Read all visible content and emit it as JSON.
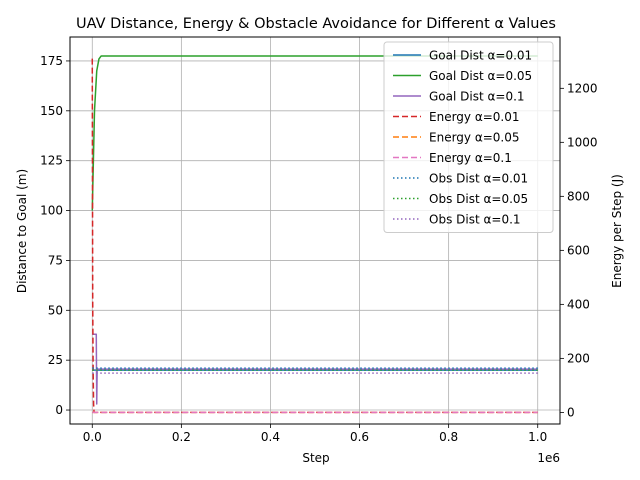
{
  "chart_data": {
    "type": "line",
    "title": "UAV Distance, Energy & Obstacle Avoidance for Different α Values",
    "xlabel": "Step",
    "x_offset_label": "1e6",
    "ylabel_left": "Distance to Goal (m)",
    "ylabel_right": "Energy per Step (J)",
    "xlim": [
      -50000,
      1050000
    ],
    "ylim_left": [
      -7,
      187
    ],
    "ylim_right": [
      -43,
      1390
    ],
    "x_ticks": [
      0,
      200000,
      400000,
      600000,
      800000,
      1000000
    ],
    "x_tick_labels": [
      "0.0",
      "0.2",
      "0.4",
      "0.6",
      "0.8",
      "1.0"
    ],
    "y_left_ticks": [
      0,
      25,
      50,
      75,
      100,
      125,
      150,
      175
    ],
    "y_left_tick_labels": [
      "0",
      "25",
      "50",
      "75",
      "100",
      "125",
      "150",
      "175"
    ],
    "y_right_ticks": [
      0,
      200,
      400,
      600,
      800,
      1000,
      1200
    ],
    "y_right_tick_labels": [
      "0",
      "200",
      "400",
      "600",
      "800",
      "1000",
      "1200"
    ],
    "grid": true,
    "legend_position": "top-right",
    "series": [
      {
        "name": "Goal Dist α=0.01",
        "axis": "left",
        "style": "solid",
        "color": "#1f77b4",
        "points": [
          [
            0,
            20
          ],
          [
            1000000,
            20
          ]
        ]
      },
      {
        "name": "Goal Dist α=0.05",
        "axis": "left",
        "style": "solid",
        "color": "#2ca02c",
        "points": [
          [
            0,
            100
          ],
          [
            5000,
            150
          ],
          [
            10000,
            170
          ],
          [
            15000,
            176
          ],
          [
            20000,
            177.5
          ],
          [
            1000000,
            177.5
          ]
        ]
      },
      {
        "name": "Goal Dist α=0.1",
        "axis": "left",
        "style": "solid",
        "color": "#9467bd",
        "points": [
          [
            0,
            38
          ],
          [
            9000,
            38
          ],
          [
            10000,
            3
          ],
          [
            11000,
            20.5
          ],
          [
            1000000,
            20.5
          ]
        ]
      },
      {
        "name": "Energy α=0.01",
        "axis": "right",
        "style": "dashed",
        "color": "#d62728",
        "points": [
          [
            0,
            1310
          ],
          [
            1000,
            400
          ],
          [
            2000,
            150
          ],
          [
            3000,
            30
          ],
          [
            4000,
            0
          ],
          [
            1000000,
            0
          ]
        ]
      },
      {
        "name": "Energy α=0.05",
        "axis": "right",
        "style": "dashed",
        "color": "#ff7f0e",
        "points": [
          [
            0,
            0
          ],
          [
            1000000,
            0
          ]
        ]
      },
      {
        "name": "Energy α=0.1",
        "axis": "right",
        "style": "dashed",
        "color": "#e377c2",
        "points": [
          [
            0,
            0
          ],
          [
            1000000,
            0
          ]
        ]
      },
      {
        "name": "Obs Dist α=0.01",
        "axis": "left",
        "style": "dotted",
        "color": "#1f77b4",
        "points": [
          [
            0,
            21
          ],
          [
            1000000,
            21
          ]
        ]
      },
      {
        "name": "Obs Dist α=0.05",
        "axis": "left",
        "style": "dotted",
        "color": "#2ca02c",
        "points": [
          [
            0,
            20
          ],
          [
            1000000,
            20
          ]
        ]
      },
      {
        "name": "Obs Dist α=0.1",
        "axis": "left",
        "style": "dotted",
        "color": "#9467bd",
        "points": [
          [
            0,
            18.5
          ],
          [
            1000000,
            18.5
          ]
        ]
      }
    ]
  }
}
